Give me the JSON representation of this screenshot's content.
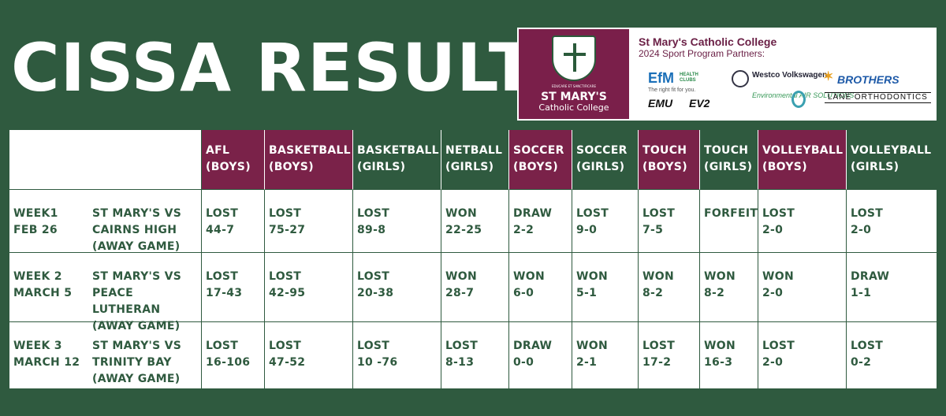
{
  "title": "CISSA RESULTS",
  "sponsor_panel": {
    "college_name_line1": "ST MARY'S",
    "college_name_line2": "Catholic College",
    "crest_motto": "EDUCARE ET SANCTIFICARE",
    "partners_title": "St Mary's Catholic College",
    "partners_subtitle": "2024 Sport Program Partners:",
    "sponsors": {
      "efm": "EfM",
      "efm_sub": "HEALTH CLUBS",
      "efm_tagline": "The right fit for you.",
      "westco": "Westco Volkswagen",
      "brothers": "BROTHERS",
      "emu": "EMU",
      "ev2": "EV2",
      "environmental": "Environmental AIR SOLUTIONS",
      "lane": "LANE ORTHODONTICS"
    }
  },
  "colors": {
    "background": "#2f5a3f",
    "maroon": "#7a2249",
    "white": "#ffffff"
  },
  "table": {
    "headers": [
      {
        "l1": "AFL",
        "l2": "(BOYS)",
        "color": "maroon"
      },
      {
        "l1": "BASKETBALL",
        "l2": "(BOYS)",
        "color": "maroon"
      },
      {
        "l1": "BASKETBALL",
        "l2": "(GIRLS)",
        "color": "green"
      },
      {
        "l1": "NETBALL",
        "l2": "(GIRLS)",
        "color": "green"
      },
      {
        "l1": "SOCCER",
        "l2": "(BOYS)",
        "color": "maroon"
      },
      {
        "l1": "SOCCER",
        "l2": "(GIRLS)",
        "color": "green"
      },
      {
        "l1": "TOUCH",
        "l2": "(BOYS)",
        "color": "maroon"
      },
      {
        "l1": "TOUCH",
        "l2": "(GIRLS)",
        "color": "green"
      },
      {
        "l1": "VOLLEYBALL",
        "l2": "(BOYS)",
        "color": "maroon"
      },
      {
        "l1": "VOLLEYBALL",
        "l2": "(GIRLS)",
        "color": "green"
      }
    ],
    "rows": [
      {
        "week_l1": "WEEK1",
        "week_l2": "FEB 26",
        "match_l1": "ST MARY'S VS",
        "match_l2": "CAIRNS HIGH",
        "match_l3": "(AWAY GAME)",
        "results": [
          {
            "r": "LOST",
            "s": "44-7"
          },
          {
            "r": "LOST",
            "s": "75-27"
          },
          {
            "r": "LOST",
            "s": "89-8"
          },
          {
            "r": "WON",
            "s": "22-25"
          },
          {
            "r": "DRAW",
            "s": "2-2"
          },
          {
            "r": "LOST",
            "s": "9-0"
          },
          {
            "r": "LOST",
            "s": "7-5"
          },
          {
            "r": "FORFEIT",
            "s": ""
          },
          {
            "r": "LOST",
            "s": "2-0"
          },
          {
            "r": "LOST",
            "s": "2-0"
          }
        ]
      },
      {
        "week_l1": "WEEK 2",
        "week_l2": "MARCH 5",
        "match_l1": "ST MARY'S VS",
        "match_l2": "PEACE LUTHERAN",
        "match_l3": "(AWAY GAME)",
        "results": [
          {
            "r": "LOST",
            "s": "17-43"
          },
          {
            "r": "LOST",
            "s": "42-95"
          },
          {
            "r": "LOST",
            "s": "20-38"
          },
          {
            "r": "WON",
            "s": "28-7"
          },
          {
            "r": "WON",
            "s": "6-0"
          },
          {
            "r": "WON",
            "s": "5-1"
          },
          {
            "r": "WON",
            "s": "8-2"
          },
          {
            "r": "WON",
            "s": "8-2"
          },
          {
            "r": "WON",
            "s": "2-0"
          },
          {
            "r": "DRAW",
            "s": "1-1"
          }
        ]
      },
      {
        "week_l1": "WEEK 3",
        "week_l2": "MARCH 12",
        "match_l1": "ST MARY'S VS",
        "match_l2": "TRINITY BAY",
        "match_l3": "(AWAY GAME)",
        "results": [
          {
            "r": "LOST",
            "s": "16-106"
          },
          {
            "r": "LOST",
            "s": "47-52"
          },
          {
            "r": "LOST",
            "s": "10 -76"
          },
          {
            "r": "LOST",
            "s": "8-13"
          },
          {
            "r": "DRAW",
            "s": "0-0"
          },
          {
            "r": "WON",
            "s": "2-1"
          },
          {
            "r": "LOST",
            "s": "17-2"
          },
          {
            "r": "WON",
            "s": "16-3"
          },
          {
            "r": "LOST",
            "s": "2-0"
          },
          {
            "r": "LOST",
            "s": "0-2"
          }
        ]
      }
    ]
  }
}
